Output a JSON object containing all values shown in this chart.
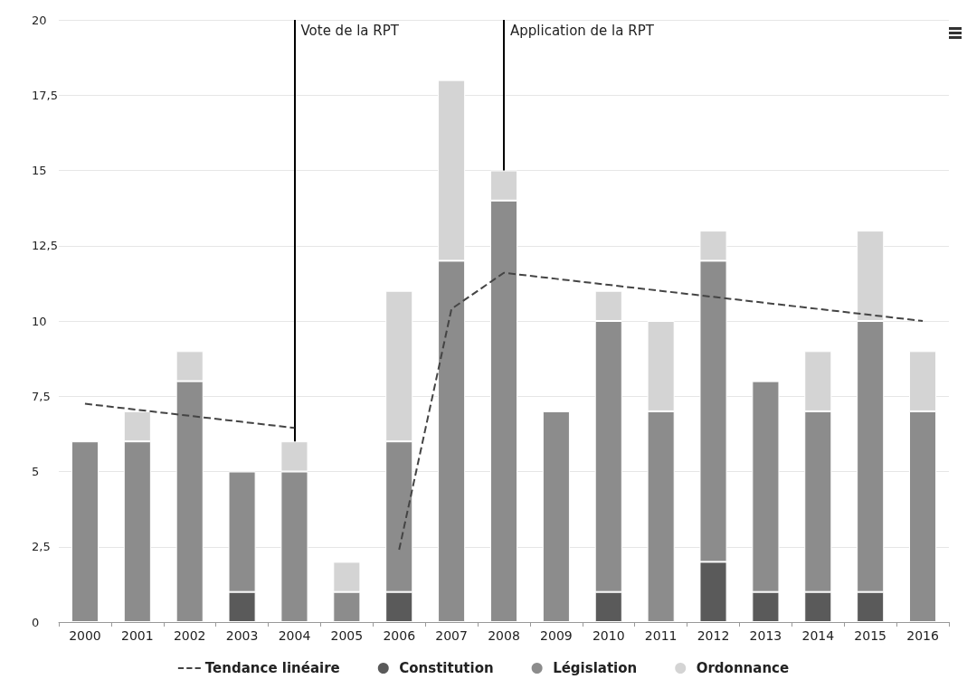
{
  "chart_data": {
    "type": "bar",
    "stacked": true,
    "categories": [
      "2000",
      "2001",
      "2002",
      "2003",
      "2004",
      "2005",
      "2006",
      "2007",
      "2008",
      "2009",
      "2010",
      "2011",
      "2012",
      "2013",
      "2014",
      "2015",
      "2016"
    ],
    "series": [
      {
        "name": "Tendance linéaire",
        "type": "line",
        "line_style": "dashed",
        "marker": "none",
        "color": "#444444",
        "values": [
          7.25,
          7.05,
          6.85,
          6.65,
          6.45,
          null,
          2.4,
          10.4,
          11.6,
          11.4,
          11.2,
          11.0,
          10.8,
          10.6,
          10.4,
          10.2,
          10.0
        ]
      },
      {
        "name": "Constitution",
        "color": "#5a5a5a",
        "values": [
          0,
          0,
          0,
          1,
          0,
          0,
          1,
          0,
          0,
          0,
          1,
          0,
          2,
          1,
          1,
          1,
          0
        ]
      },
      {
        "name": "Législation",
        "color": "#8c8c8c",
        "values": [
          6,
          6,
          8,
          4,
          5,
          1,
          5,
          12,
          14,
          7,
          9,
          7,
          10,
          7,
          6,
          9,
          7
        ]
      },
      {
        "name": "Ordonnance",
        "color": "#d4d4d4",
        "values": [
          0,
          1,
          1,
          0,
          1,
          1,
          5,
          6,
          1,
          0,
          1,
          3,
          1,
          0,
          2,
          3,
          2
        ]
      }
    ],
    "ylim": [
      0,
      20
    ],
    "yticks": [
      0,
      {
        "value": 2.5,
        "label": "2,5"
      },
      5,
      {
        "value": 7.5,
        "label": "7,5"
      },
      10,
      {
        "value": 12.5,
        "label": "12,5"
      },
      15,
      {
        "value": 17.5,
        "label": "17,5"
      },
      20
    ],
    "grid": "y",
    "legend": "bottom",
    "ref_lines": [
      {
        "axis": "x",
        "value": "2004",
        "label": "Vote de la RPT",
        "color": "#000000"
      },
      {
        "axis": "x",
        "value": "2008",
        "label": "Application de la RPT",
        "color": "#000000"
      }
    ]
  }
}
